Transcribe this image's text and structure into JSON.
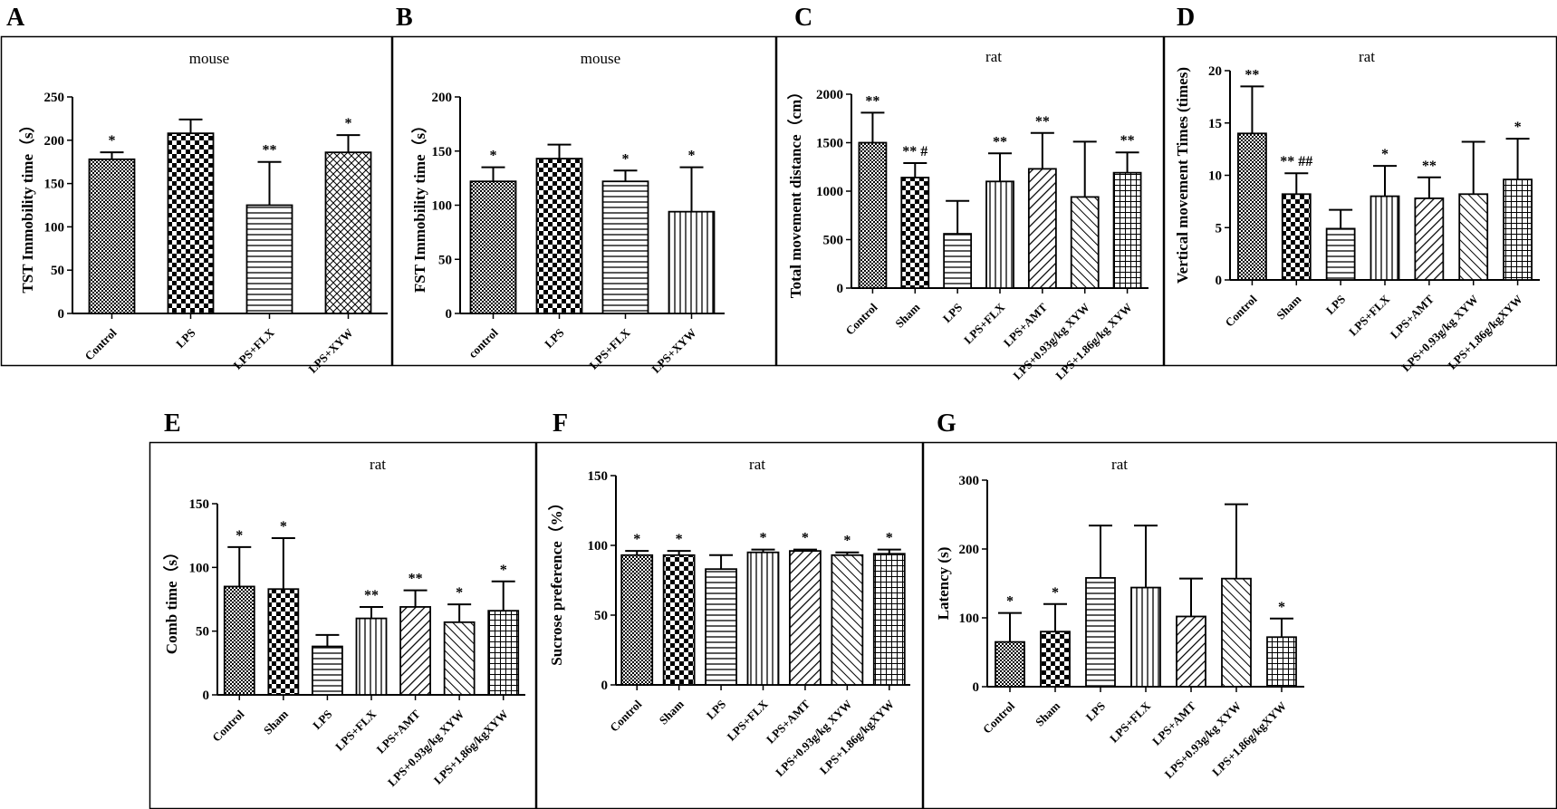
{
  "chart_data": [
    {
      "panel": "A",
      "type": "bar",
      "title": "mouse",
      "ylabel": "TST  Immobility time（s）",
      "ylim": [
        0,
        250
      ],
      "yticks": [
        0,
        50,
        100,
        150,
        200,
        250
      ],
      "categories": [
        "Control",
        "LPS",
        "LPS+FLX",
        "LPS+XYW"
      ],
      "values": [
        178,
        208,
        125,
        186
      ],
      "errors": [
        8,
        16,
        50,
        20
      ],
      "patterns": [
        "checkSmall",
        "checkBig",
        "hlines",
        "xcross"
      ],
      "significance": [
        "*",
        "",
        "**",
        "*"
      ]
    },
    {
      "panel": "B",
      "type": "bar",
      "title": "mouse",
      "ylabel": "FST Immobility time（s）",
      "ylim": [
        0,
        200
      ],
      "yticks": [
        0,
        50,
        100,
        150,
        200
      ],
      "categories": [
        "control",
        "LPS",
        "LPS+FLX",
        "LPS+XYW"
      ],
      "values": [
        122,
        143,
        122,
        94
      ],
      "errors": [
        13,
        13,
        10,
        41
      ],
      "patterns": [
        "checkSmall",
        "checkBig",
        "hlines",
        "vlines"
      ],
      "significance": [
        "*",
        "",
        "*",
        "*"
      ]
    },
    {
      "panel": "C",
      "type": "bar",
      "title": "rat",
      "ylabel": "Total movement distance（cm）",
      "ylim": [
        0,
        2000
      ],
      "yticks": [
        0,
        500,
        1000,
        1500,
        2000
      ],
      "categories": [
        "Control",
        "Sham",
        "LPS",
        "LPS+FLX",
        "LPS+AMT",
        "LPS+0.93g/kg XYW",
        "LPS+1.86g/kg XYW"
      ],
      "values": [
        1500,
        1140,
        560,
        1100,
        1230,
        940,
        1190
      ],
      "errors": [
        310,
        150,
        340,
        290,
        370,
        570,
        210
      ],
      "patterns": [
        "checkSmall",
        "checkBig",
        "hlines",
        "vlines",
        "diagFwd",
        "diagBack",
        "grid"
      ],
      "significance": [
        "**",
        "** #",
        "",
        "**",
        "**",
        "",
        "**"
      ]
    },
    {
      "panel": "D",
      "type": "bar",
      "title": "rat",
      "ylabel": "Vertical movement Times (times)",
      "ylim": [
        0,
        20
      ],
      "yticks": [
        0,
        5,
        10,
        15,
        20
      ],
      "categories": [
        "Control",
        "Sham",
        "LPS",
        "LPS+FLX",
        "LPS+AMT",
        "LPS+0.93g/kg XYW",
        "LPS+1.86g/kgXYW"
      ],
      "values": [
        14,
        8.2,
        4.9,
        8,
        7.8,
        8.2,
        9.6
      ],
      "errors": [
        4.5,
        2,
        1.8,
        2.9,
        2,
        5,
        3.9
      ],
      "patterns": [
        "checkSmall",
        "checkBig",
        "hlines",
        "vlines",
        "diagFwd",
        "diagBack",
        "grid"
      ],
      "significance": [
        "**",
        "** ##",
        "",
        "*",
        "**",
        "",
        "*"
      ]
    },
    {
      "panel": "E",
      "type": "bar",
      "title": "rat",
      "ylabel": "Comb time（s）",
      "ylim": [
        0,
        150
      ],
      "yticks": [
        0,
        50,
        100,
        150
      ],
      "categories": [
        "Control",
        "Sham",
        "LPS",
        "LPS+FLX",
        "LPS+AMT",
        "LPS+0.93g/kg XYW",
        "LPS+1.86g/kgXYW"
      ],
      "values": [
        85,
        83,
        38,
        60,
        69,
        57,
        66
      ],
      "errors": [
        31,
        40,
        9,
        9,
        13,
        14,
        23
      ],
      "patterns": [
        "checkSmall",
        "checkBig",
        "hlines",
        "vlines",
        "diagFwd",
        "diagBack",
        "grid"
      ],
      "significance": [
        "*",
        "*",
        "",
        "**",
        "**",
        "*",
        "*"
      ]
    },
    {
      "panel": "F",
      "type": "bar",
      "title": "rat",
      "ylabel": "Sucrose preference（%）",
      "ylim": [
        0,
        150
      ],
      "yticks": [
        0,
        50,
        100,
        150
      ],
      "categories": [
        "Control",
        "Sham",
        "LPS",
        "LPS+FLX",
        "LPS+AMT",
        "LPS+0.93g/kg XYW",
        "LPS+1.86g/kgXYW"
      ],
      "values": [
        93,
        93,
        83,
        95,
        96,
        93,
        94
      ],
      "errors": [
        3,
        3,
        10,
        2,
        1,
        2,
        3
      ],
      "patterns": [
        "checkSmall",
        "checkBig",
        "hlines",
        "vlines",
        "diagFwd",
        "diagBack",
        "grid"
      ],
      "significance": [
        "*",
        "*",
        "",
        "*",
        "*",
        "*",
        "*"
      ]
    },
    {
      "panel": "G",
      "type": "bar",
      "title": "rat",
      "ylabel": "Latency (s)",
      "ylim": [
        0,
        300
      ],
      "yticks": [
        0,
        100,
        200,
        300
      ],
      "categories": [
        "Control",
        "Sham",
        "LPS",
        "LPS+FLX",
        "LPS+AMT",
        "LPS+0.93g/kg XYW",
        "LPS+1.86g/kgXYW"
      ],
      "values": [
        65,
        80,
        158,
        144,
        102,
        157,
        72
      ],
      "errors": [
        42,
        40,
        76,
        90,
        55,
        108,
        27
      ],
      "patterns": [
        "checkSmall",
        "checkBig",
        "hlines",
        "vlines",
        "diagFwd",
        "diagBack",
        "grid"
      ],
      "significance": [
        "*",
        "*",
        "",
        "",
        "",
        "",
        "*"
      ]
    }
  ]
}
